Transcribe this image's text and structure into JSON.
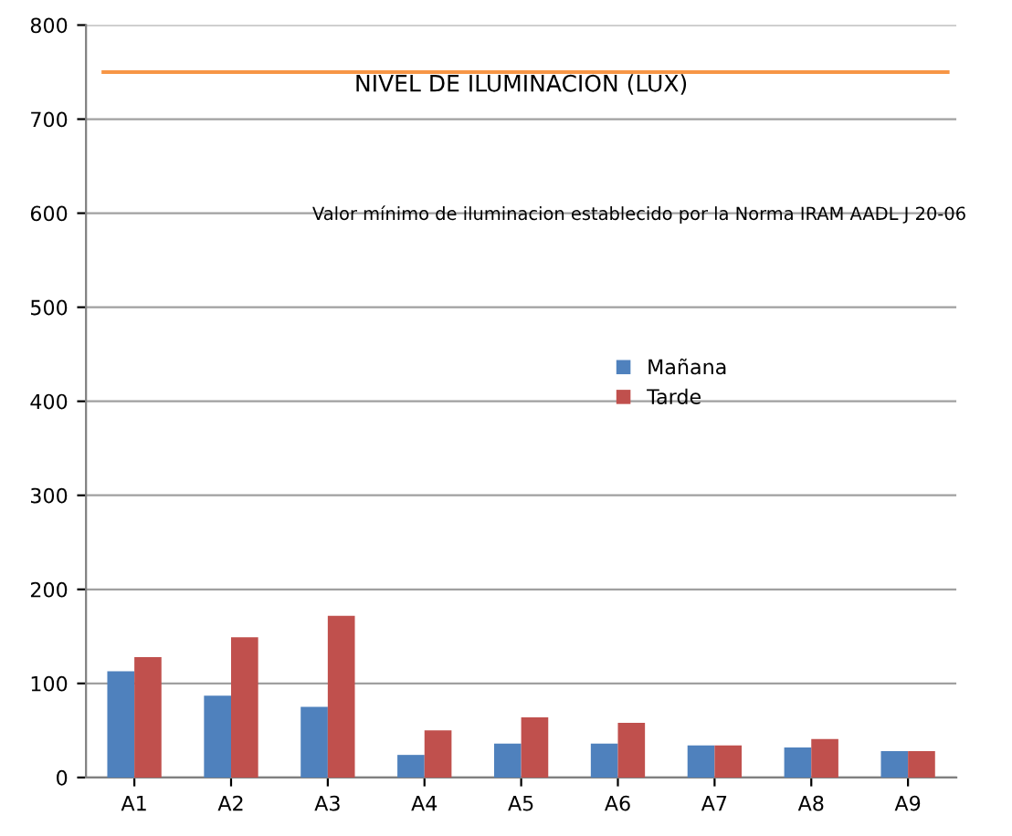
{
  "chart_data": {
    "type": "bar",
    "title": "NIVEL DE ILUMINACION (LUX)",
    "categories": [
      "A1",
      "A2",
      "A3",
      "A4",
      "A5",
      "A6",
      "A7",
      "A8",
      "A9"
    ],
    "series": [
      {
        "name": "Mañana",
        "color": "#4f81bd",
        "values": [
          113,
          87,
          75,
          24,
          36,
          36,
          34,
          32,
          28
        ]
      },
      {
        "name": "Tarde",
        "color": "#c0504d",
        "values": [
          128,
          149,
          172,
          50,
          64,
          58,
          34,
          41,
          28
        ]
      }
    ],
    "ref_lines": [
      {
        "axis": "y",
        "value": 750,
        "color": "#f79646"
      }
    ],
    "annotations": [
      "Valor mínimo de iluminacion establecido por la Norma IRAM AADL J 20-06"
    ],
    "ylim": [
      0,
      800
    ],
    "yticks": [
      0,
      100,
      200,
      300,
      400,
      500,
      600,
      700,
      800
    ],
    "grid": "y",
    "legend": "right"
  }
}
